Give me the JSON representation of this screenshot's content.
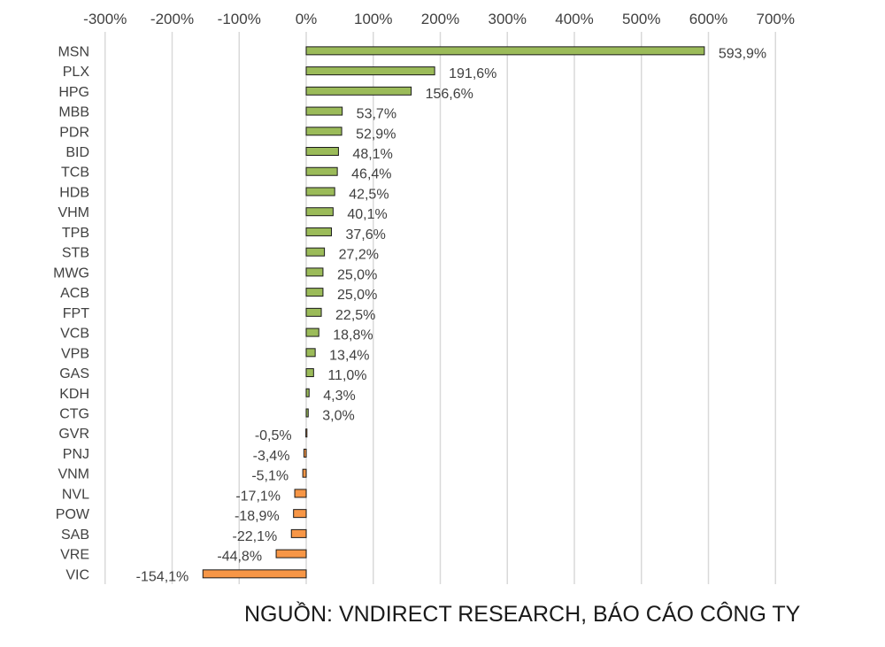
{
  "chart_data": {
    "type": "bar",
    "orientation": "horizontal",
    "categories": [
      "MSN",
      "PLX",
      "HPG",
      "MBB",
      "PDR",
      "BID",
      "TCB",
      "HDB",
      "VHM",
      "TPB",
      "STB",
      "MWG",
      "ACB",
      "FPT",
      "VCB",
      "VPB",
      "GAS",
      "KDH",
      "CTG",
      "GVR",
      "PNJ",
      "VNM",
      "NVL",
      "POW",
      "SAB",
      "VRE",
      "VIC"
    ],
    "values": [
      593.9,
      191.6,
      156.6,
      53.7,
      52.9,
      48.1,
      46.4,
      42.5,
      40.1,
      37.6,
      27.2,
      25.0,
      25.0,
      22.5,
      18.8,
      13.4,
      11.0,
      4.3,
      3.0,
      -0.5,
      -3.4,
      -5.1,
      -17.1,
      -18.9,
      -22.1,
      -44.8,
      -154.1
    ],
    "value_labels": [
      "593,9%",
      "191,6%",
      "156,6%",
      "53,7%",
      "52,9%",
      "48,1%",
      "46,4%",
      "42,5%",
      "40,1%",
      "37,6%",
      "27,2%",
      "25,0%",
      "25,0%",
      "22,5%",
      "18,8%",
      "13,4%",
      "11,0%",
      "4,3%",
      "3,0%",
      "-0,5%",
      "-3,4%",
      "-5,1%",
      "-17,1%",
      "-18,9%",
      "-22,1%",
      "-44,8%",
      "-154,1%"
    ],
    "xlim": [
      -300,
      700
    ],
    "x_ticks": [
      -300,
      -200,
      -100,
      0,
      100,
      200,
      300,
      400,
      500,
      600,
      700
    ],
    "x_tick_labels": [
      "-300%",
      "-200%",
      "-100%",
      "0%",
      "100%",
      "200%",
      "300%",
      "400%",
      "500%",
      "600%",
      "700%"
    ],
    "x_axis_position": "top",
    "grid": true,
    "colors": {
      "positive": "#9bbb59",
      "negative": "#f79646",
      "outline": "#1a1a1a",
      "grid": "#d9d9d9"
    }
  },
  "footer": {
    "source": "NGUỒN: VNDIRECT RESEARCH, BÁO CÁO CÔNG TY"
  }
}
